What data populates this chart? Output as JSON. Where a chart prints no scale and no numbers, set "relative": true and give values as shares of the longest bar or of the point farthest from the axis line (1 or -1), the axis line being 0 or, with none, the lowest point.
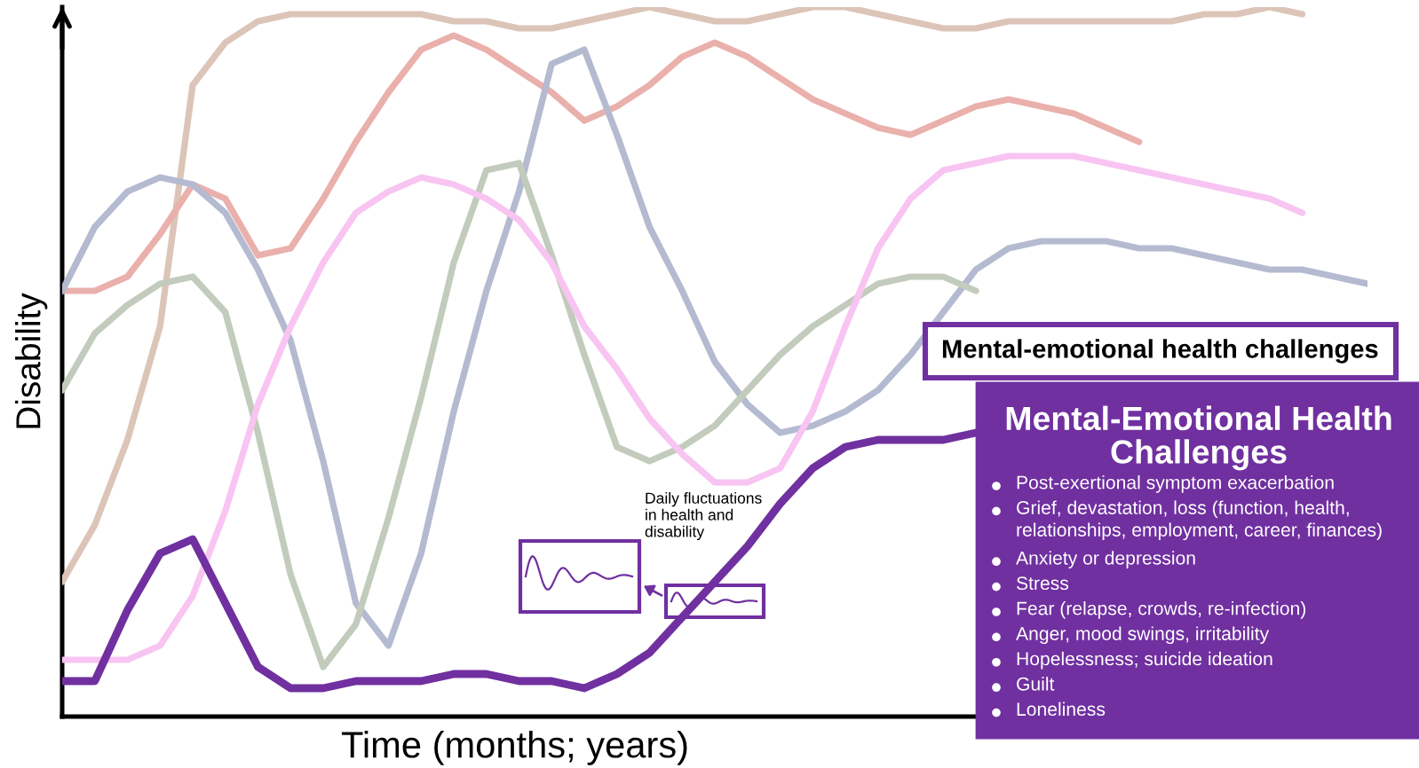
{
  "chart_data": {
    "type": "line",
    "relative": true,
    "categories": [
      null,
      null,
      null,
      null,
      null,
      null,
      null,
      null,
      null,
      null,
      null,
      null,
      null,
      null,
      null,
      null,
      null,
      null,
      null,
      null,
      null,
      null,
      null,
      null,
      null,
      null,
      null,
      null,
      null,
      null,
      null,
      null,
      null,
      null,
      null,
      null,
      null,
      null,
      null,
      null,
      null
    ],
    "xlabel": "Time (months; years)",
    "ylabel": "Disability",
    "annotations": [
      "Mental-emotional health challenges",
      "Mental-Emotional Health Challenges",
      "Post-exertional symptom exacerbation",
      "Grief, devastation, loss (function, health,\nrelationships, employment, career, finances)",
      "Anxiety or depression",
      "Stress",
      "Fear (relapse, crowds, re-infection)",
      "Anger, mood swings, irritability",
      "Hopelessness; suicide ideation",
      "Guilt",
      "Loneliness",
      "Daily fluctuations\nin health and\ndisability"
    ],
    "series": [
      {
        "color": "#dcc4b8",
        "values": [
          0.19,
          0.27,
          0.39,
          0.55,
          0.89,
          0.95,
          0.98,
          0.99,
          0.99,
          0.99,
          0.99,
          0.99,
          0.98,
          0.98,
          0.97,
          0.97,
          0.98,
          0.99,
          1.0,
          0.99,
          0.98,
          0.98,
          0.99,
          1.0,
          1.0,
          0.99,
          0.98,
          0.97,
          0.97,
          0.98,
          0.98,
          0.98,
          0.98,
          0.98,
          0.98,
          0.99,
          0.99,
          1.0,
          0.99,
          null,
          null
        ]
      },
      {
        "color": "#eab0ac",
        "values": [
          0.6,
          0.6,
          0.62,
          0.68,
          0.75,
          0.73,
          0.65,
          0.66,
          0.73,
          0.81,
          0.88,
          0.94,
          0.96,
          0.94,
          0.91,
          0.88,
          0.84,
          0.86,
          0.89,
          0.93,
          0.95,
          0.93,
          0.9,
          0.87,
          0.85,
          0.83,
          0.82,
          0.84,
          0.86,
          0.87,
          0.86,
          0.85,
          0.83,
          0.81,
          null,
          null,
          null,
          null,
          null,
          null,
          null
        ]
      },
      {
        "color": "#b4bad0",
        "values": [
          0.6,
          0.69,
          0.74,
          0.76,
          0.75,
          0.71,
          0.63,
          0.53,
          0.36,
          0.16,
          0.1,
          0.23,
          0.43,
          0.6,
          0.74,
          0.92,
          0.94,
          0.82,
          0.69,
          0.6,
          0.5,
          0.44,
          0.4,
          0.41,
          0.43,
          0.46,
          0.51,
          0.57,
          0.63,
          0.66,
          0.67,
          0.67,
          0.67,
          0.66,
          0.66,
          0.65,
          0.64,
          0.63,
          0.63,
          0.62,
          0.61
        ]
      },
      {
        "color": "#c2cbbc",
        "values": [
          0.46,
          0.54,
          0.58,
          0.61,
          0.62,
          0.57,
          0.4,
          0.2,
          0.07,
          0.13,
          0.28,
          0.45,
          0.64,
          0.77,
          0.78,
          0.65,
          0.51,
          0.38,
          0.36,
          0.38,
          0.41,
          0.46,
          0.51,
          0.55,
          0.58,
          0.61,
          0.62,
          0.62,
          0.6,
          null,
          null,
          null,
          null,
          null,
          null,
          null,
          null,
          null,
          null,
          null,
          null
        ]
      },
      {
        "color": "#f8c4f2",
        "values": [
          0.08,
          0.08,
          0.08,
          0.1,
          0.17,
          0.29,
          0.44,
          0.55,
          0.64,
          0.71,
          0.74,
          0.76,
          0.75,
          0.73,
          0.7,
          0.64,
          0.55,
          0.49,
          0.42,
          0.37,
          0.33,
          0.33,
          0.35,
          0.43,
          0.55,
          0.66,
          0.73,
          0.77,
          0.78,
          0.79,
          0.79,
          0.79,
          0.78,
          0.77,
          0.76,
          0.75,
          0.74,
          0.73,
          0.71,
          null,
          null
        ]
      },
      {
        "color": "#7030a0",
        "values": [
          0.05,
          0.05,
          0.15,
          0.23,
          0.25,
          0.16,
          0.07,
          0.04,
          0.04,
          0.05,
          0.05,
          0.05,
          0.06,
          0.06,
          0.05,
          0.05,
          0.04,
          0.06,
          0.09,
          0.14,
          0.19,
          0.24,
          0.3,
          0.35,
          0.38,
          0.39,
          0.39,
          0.39,
          0.4,
          null,
          null,
          null,
          null,
          null,
          null,
          null,
          null,
          null,
          null,
          null,
          null
        ]
      }
    ]
  }
}
